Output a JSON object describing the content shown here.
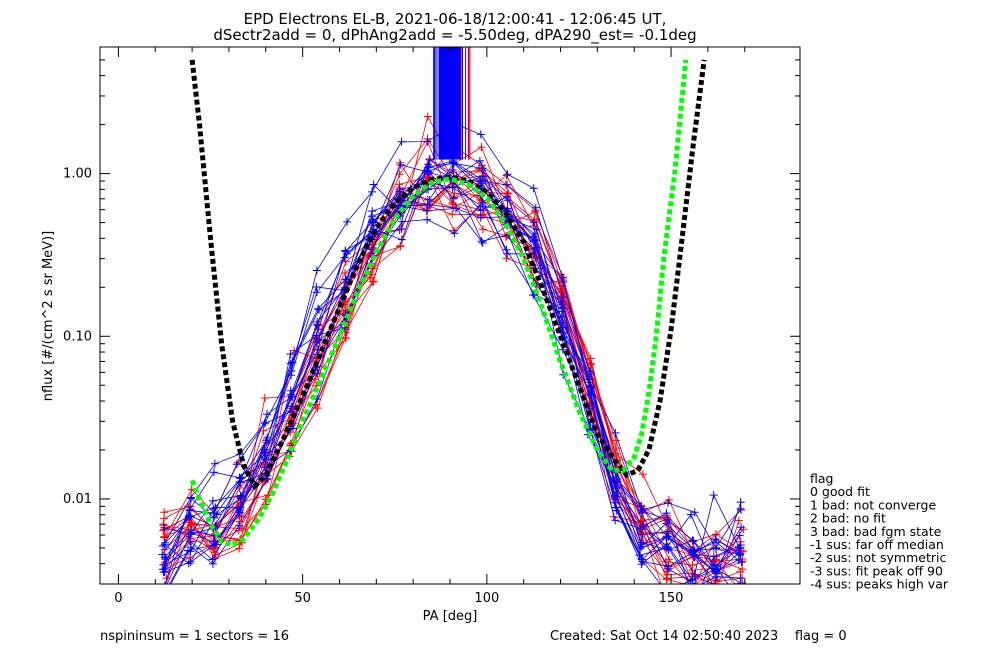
{
  "chart_data": {
    "type": "line",
    "title": "EPD Electrons EL-B, 2021-06-18/12:00:41 - 12:06:45 UT,",
    "subtitle": "dSectr2add = 0, dPhAng2add = -5.50deg, dPA290_est=  -0.1deg",
    "xlabel": "PA [deg]",
    "ylabel": "nflux [#/(cm^2 s sr MeV)]",
    "xlim": [
      -5,
      185
    ],
    "ylim": [
      0.003,
      6
    ],
    "y_scale": "log",
    "x_ticks": [
      0,
      50,
      100,
      150
    ],
    "y_ticks": [
      0.01,
      0.1,
      1.0
    ],
    "y_tick_labels": [
      "0.01",
      "0.10",
      "1.00"
    ],
    "colors": {
      "blue": "#0000ff",
      "red": "#ff0000",
      "black": "#000000",
      "green": "#00ff00"
    },
    "series": [
      {
        "color": "blue",
        "style": "thin lines with + markers (many spin traces)",
        "x": [
          12.5,
          19.5,
          26,
          33,
          40,
          47,
          54,
          61.5,
          69,
          76.5,
          84,
          91,
          98.5,
          105.5,
          113,
          120.5,
          128,
          135,
          142,
          149,
          156,
          162,
          169
        ],
        "y": [
          0.004,
          0.006,
          0.007,
          0.01,
          0.02,
          0.045,
          0.1,
          0.2,
          0.4,
          0.7,
          0.9,
          0.92,
          0.75,
          0.55,
          0.3,
          0.12,
          0.035,
          0.012,
          0.006,
          0.005,
          0.004,
          0.004,
          0.004
        ]
      },
      {
        "color": "red",
        "style": "thin lines with + markers (many spin traces)",
        "x": [
          12.5,
          19.5,
          26,
          33,
          40,
          47,
          54,
          61.5,
          69,
          76.5,
          84,
          91,
          98.5,
          105.5,
          113,
          120.5,
          128,
          135,
          142,
          149,
          156,
          162,
          169
        ],
        "y": [
          0.005,
          0.006,
          0.006,
          0.008,
          0.015,
          0.03,
          0.07,
          0.15,
          0.35,
          0.6,
          0.85,
          0.9,
          0.8,
          0.6,
          0.35,
          0.15,
          0.05,
          0.015,
          0.007,
          0.005,
          0.004,
          0.004,
          0.004
        ]
      },
      {
        "color": "black",
        "style": "thick dashed fit",
        "x": [
          20,
          22,
          25,
          28,
          31,
          34,
          37,
          40,
          45,
          50,
          55,
          60,
          65,
          70,
          75,
          80,
          85,
          90,
          95,
          100,
          105,
          110,
          115,
          120,
          125,
          130,
          135,
          138,
          141,
          144,
          147,
          150,
          153,
          156,
          159
        ],
        "y": [
          5.0,
          2.0,
          0.4,
          0.09,
          0.03,
          0.016,
          0.012,
          0.014,
          0.024,
          0.043,
          0.08,
          0.15,
          0.28,
          0.46,
          0.66,
          0.82,
          0.92,
          0.95,
          0.9,
          0.77,
          0.58,
          0.38,
          0.2,
          0.1,
          0.05,
          0.025,
          0.017,
          0.014,
          0.015,
          0.02,
          0.04,
          0.11,
          0.4,
          1.5,
          5.0
        ]
      },
      {
        "color": "green",
        "style": "thick dashed fit",
        "x": [
          20,
          22,
          25,
          28,
          31,
          34,
          38,
          42,
          46,
          50,
          55,
          60,
          65,
          70,
          75,
          80,
          85,
          90,
          95,
          100,
          105,
          110,
          115,
          120,
          125,
          130,
          134,
          137,
          140,
          142,
          144,
          146,
          148,
          151,
          154
        ],
        "y": [
          0.013,
          0.01,
          0.007,
          0.0055,
          0.0052,
          0.0057,
          0.0075,
          0.011,
          0.018,
          0.03,
          0.055,
          0.1,
          0.19,
          0.33,
          0.53,
          0.73,
          0.88,
          0.93,
          0.86,
          0.71,
          0.5,
          0.3,
          0.15,
          0.07,
          0.035,
          0.02,
          0.015,
          0.015,
          0.018,
          0.025,
          0.045,
          0.1,
          0.3,
          1.0,
          5.0
        ]
      }
    ],
    "legend": {
      "placement": "lower-right, outside plot",
      "entries": [
        "flag",
        " 0 good fit",
        " 1 bad: not converge",
        " 2 bad: no fit",
        " 3 bad: bad fgm state",
        "-1 sus: far off median",
        "-2 sus: not symmetric",
        "-3 sus: fit peak off 90",
        "-4 sus: peaks high var"
      ]
    },
    "footer": {
      "left": "nspininsum =  1  sectors = 16",
      "right": "Created: Sat Oct 14 02:50:40 2023    flag = 0"
    },
    "grid": false
  }
}
